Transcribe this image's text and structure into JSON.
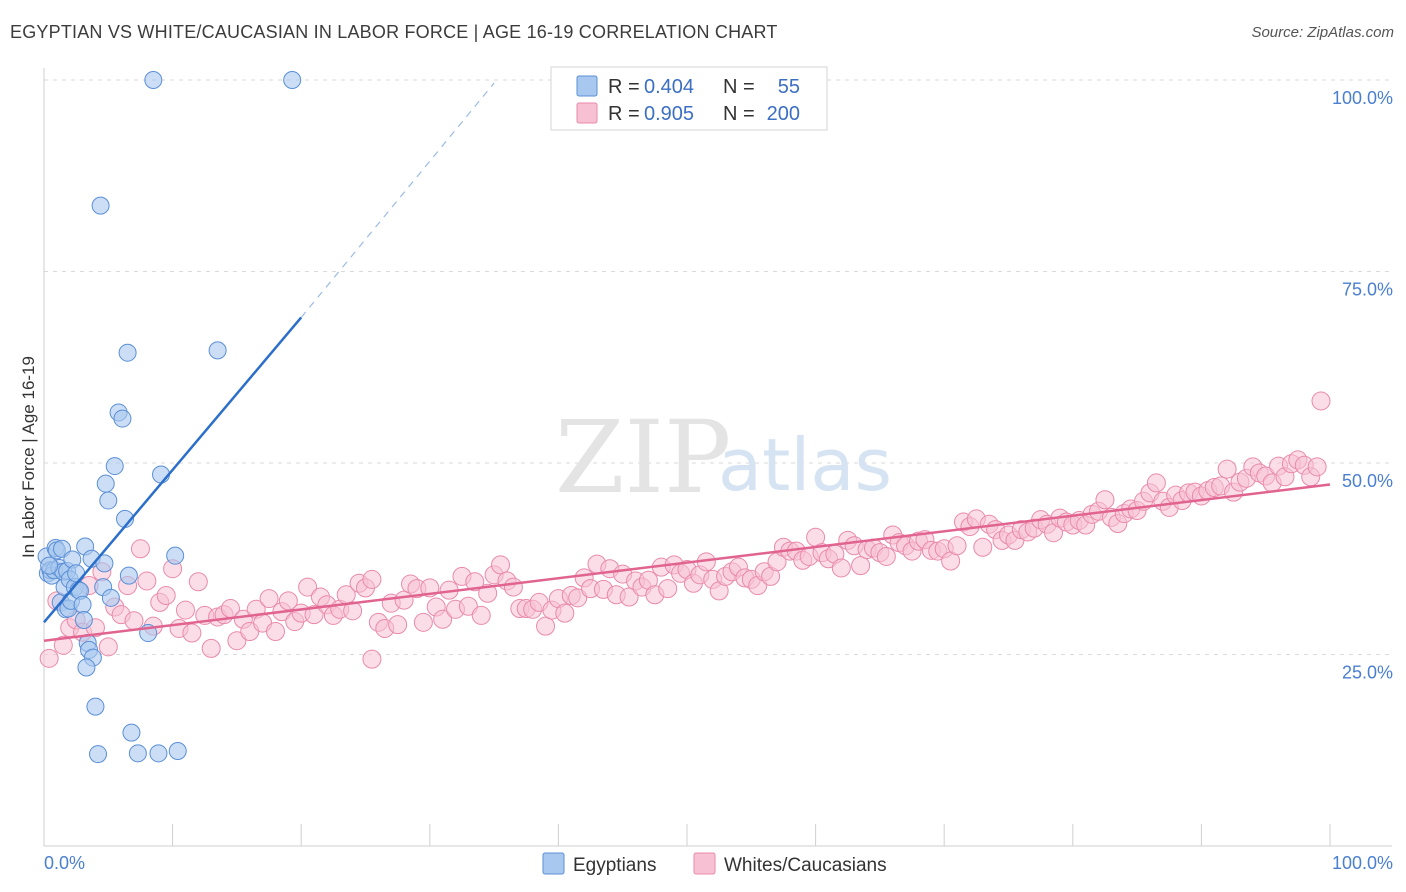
{
  "title": "EGYPTIAN VS WHITE/CAUCASIAN IN LABOR FORCE | AGE 16-19 CORRELATION CHART",
  "source": "Source: ZipAtlas.com",
  "watermark": {
    "zip": "ZIP",
    "atlas": "atlas"
  },
  "colors": {
    "egyptian_fill": "#a9c8ef",
    "egyptian_stroke": "#5b8fd6",
    "egyptian_line": "#2c6fcb",
    "white_fill": "#f7c1d3",
    "white_stroke": "#e98aab",
    "white_line": "#e0648f",
    "grid": "#d9d9d9",
    "tick_text": "#4a7fd0"
  },
  "stats": {
    "r_label": "R =",
    "n_label": "N =",
    "rows": [
      {
        "series": "Egyptians",
        "r": "0.404",
        "n": "55"
      },
      {
        "series": "Whites/Caucasians",
        "r": "0.905",
        "n": "200"
      }
    ]
  },
  "chart_data": {
    "type": "scatter",
    "ylabel": "In Labor Force | Age 16-19",
    "xlim": [
      0,
      100
    ],
    "ylim": [
      0,
      103
    ],
    "x_tick_labels": {
      "left": "0.0%",
      "right": "100.0%"
    },
    "y_ticks": [
      {
        "value": 25,
        "label": "25.0%"
      },
      {
        "value": 50,
        "label": "50.0%"
      },
      {
        "value": 75,
        "label": "75.0%"
      },
      {
        "value": 100,
        "label": "100.0%"
      }
    ],
    "grid": true,
    "legend_position": "bottom-center",
    "series": [
      {
        "name": "Egyptians",
        "points": [
          [
            0.2,
            37.8
          ],
          [
            0.3,
            35.6
          ],
          [
            0.5,
            36.0
          ],
          [
            0.6,
            35.3
          ],
          [
            0.8,
            36.0
          ],
          [
            0.9,
            38.9
          ],
          [
            1.0,
            38.6
          ],
          [
            1.2,
            36.3
          ],
          [
            1.3,
            31.8
          ],
          [
            1.4,
            38.8
          ],
          [
            1.5,
            35.8
          ],
          [
            1.6,
            33.8
          ],
          [
            1.7,
            30.9
          ],
          [
            1.8,
            35.9
          ],
          [
            1.9,
            31.0
          ],
          [
            2.0,
            34.8
          ],
          [
            2.1,
            32.0
          ],
          [
            2.2,
            37.4
          ],
          [
            2.4,
            33.8
          ],
          [
            2.5,
            35.6
          ],
          [
            2.7,
            33.4
          ],
          [
            2.8,
            33.3
          ],
          [
            3.0,
            31.5
          ],
          [
            3.1,
            29.5
          ],
          [
            3.2,
            39.1
          ],
          [
            3.4,
            26.5
          ],
          [
            3.5,
            25.6
          ],
          [
            3.7,
            37.5
          ],
          [
            3.8,
            24.6
          ],
          [
            4.0,
            18.2
          ],
          [
            4.2,
            12.0
          ],
          [
            4.4,
            83.6
          ],
          [
            4.6,
            33.8
          ],
          [
            4.7,
            36.9
          ],
          [
            4.8,
            47.3
          ],
          [
            5.0,
            45.1
          ],
          [
            5.2,
            32.4
          ],
          [
            5.5,
            49.6
          ],
          [
            5.8,
            56.6
          ],
          [
            6.1,
            55.8
          ],
          [
            6.3,
            42.7
          ],
          [
            6.5,
            64.4
          ],
          [
            6.6,
            35.3
          ],
          [
            6.8,
            14.8
          ],
          [
            7.3,
            12.1
          ],
          [
            8.1,
            27.8
          ],
          [
            8.5,
            100.0
          ],
          [
            8.9,
            12.1
          ],
          [
            9.1,
            48.5
          ],
          [
            10.2,
            37.9
          ],
          [
            10.4,
            12.4
          ],
          [
            13.5,
            64.7
          ],
          [
            19.3,
            100.0
          ],
          [
            0.4,
            36.6
          ],
          [
            3.3,
            23.3
          ]
        ]
      },
      {
        "name": "Whites/Caucasians",
        "points": [
          [
            0.4,
            24.5
          ],
          [
            1.0,
            32.0
          ],
          [
            1.5,
            26.2
          ],
          [
            2.0,
            28.5
          ],
          [
            2.5,
            29.5
          ],
          [
            3.0,
            27.9
          ],
          [
            3.5,
            34.0
          ],
          [
            4.0,
            28.5
          ],
          [
            4.5,
            35.8
          ],
          [
            5.0,
            26.0
          ],
          [
            5.5,
            31.2
          ],
          [
            6.0,
            30.2
          ],
          [
            6.5,
            34.0
          ],
          [
            7.0,
            29.4
          ],
          [
            7.5,
            38.8
          ],
          [
            8.0,
            34.6
          ],
          [
            8.5,
            28.7
          ],
          [
            9.0,
            31.8
          ],
          [
            9.5,
            32.7
          ],
          [
            10.0,
            36.2
          ],
          [
            10.5,
            28.4
          ],
          [
            11.0,
            30.8
          ],
          [
            11.5,
            27.8
          ],
          [
            12.0,
            34.5
          ],
          [
            12.5,
            30.1
          ],
          [
            13.0,
            25.8
          ],
          [
            13.5,
            29.9
          ],
          [
            14.0,
            30.2
          ],
          [
            14.5,
            31.0
          ],
          [
            15.0,
            26.8
          ],
          [
            15.5,
            29.6
          ],
          [
            16.0,
            28.0
          ],
          [
            16.5,
            30.9
          ],
          [
            17.0,
            29.1
          ],
          [
            17.5,
            32.3
          ],
          [
            18.0,
            28.0
          ],
          [
            18.5,
            30.6
          ],
          [
            19.0,
            32.0
          ],
          [
            19.5,
            29.3
          ],
          [
            20.0,
            30.4
          ],
          [
            20.5,
            33.8
          ],
          [
            21.0,
            30.2
          ],
          [
            21.5,
            32.5
          ],
          [
            22.0,
            31.5
          ],
          [
            22.5,
            30.1
          ],
          [
            23.0,
            30.9
          ],
          [
            23.5,
            32.8
          ],
          [
            24.0,
            30.7
          ],
          [
            24.5,
            34.3
          ],
          [
            25.0,
            33.7
          ],
          [
            25.5,
            34.8
          ],
          [
            26.0,
            29.2
          ],
          [
            26.5,
            28.4
          ],
          [
            27.0,
            31.7
          ],
          [
            27.5,
            28.9
          ],
          [
            28.0,
            32.1
          ],
          [
            28.5,
            34.2
          ],
          [
            29.0,
            33.6
          ],
          [
            29.5,
            29.2
          ],
          [
            30.0,
            33.7
          ],
          [
            30.5,
            31.2
          ],
          [
            31.0,
            29.6
          ],
          [
            31.5,
            33.4
          ],
          [
            32.0,
            30.9
          ],
          [
            32.5,
            35.2
          ],
          [
            33.0,
            31.3
          ],
          [
            33.5,
            34.5
          ],
          [
            34.0,
            30.1
          ],
          [
            34.5,
            33.0
          ],
          [
            35.0,
            35.4
          ],
          [
            35.5,
            36.7
          ],
          [
            36.0,
            34.6
          ],
          [
            36.5,
            33.8
          ],
          [
            37.0,
            31.0
          ],
          [
            37.5,
            31.0
          ],
          [
            38.0,
            30.9
          ],
          [
            38.5,
            31.8
          ],
          [
            39.0,
            28.7
          ],
          [
            39.5,
            30.8
          ],
          [
            40.0,
            32.3
          ],
          [
            40.5,
            30.4
          ],
          [
            41.0,
            32.7
          ],
          [
            41.5,
            32.4
          ],
          [
            42.0,
            35.0
          ],
          [
            42.5,
            33.6
          ],
          [
            43.0,
            36.8
          ],
          [
            43.5,
            33.5
          ],
          [
            44.0,
            36.2
          ],
          [
            44.5,
            32.8
          ],
          [
            45.0,
            35.5
          ],
          [
            45.5,
            32.5
          ],
          [
            46.0,
            34.6
          ],
          [
            46.5,
            33.8
          ],
          [
            47.0,
            34.7
          ],
          [
            47.5,
            32.8
          ],
          [
            48.0,
            36.4
          ],
          [
            48.5,
            33.6
          ],
          [
            49.0,
            36.7
          ],
          [
            49.5,
            35.6
          ],
          [
            50.0,
            36.1
          ],
          [
            50.5,
            34.3
          ],
          [
            51.0,
            35.4
          ],
          [
            51.5,
            37.1
          ],
          [
            52.0,
            34.8
          ],
          [
            52.5,
            33.3
          ],
          [
            53.0,
            35.2
          ],
          [
            53.5,
            35.8
          ],
          [
            54.0,
            36.4
          ],
          [
            54.5,
            35.0
          ],
          [
            55.0,
            34.8
          ],
          [
            55.5,
            34.0
          ],
          [
            56.0,
            35.8
          ],
          [
            56.5,
            35.2
          ],
          [
            57.0,
            37.1
          ],
          [
            57.5,
            39.0
          ],
          [
            58.0,
            38.5
          ],
          [
            58.5,
            38.5
          ],
          [
            59.0,
            37.3
          ],
          [
            59.5,
            37.8
          ],
          [
            60.0,
            40.3
          ],
          [
            60.5,
            38.3
          ],
          [
            61.0,
            37.5
          ],
          [
            61.5,
            38.1
          ],
          [
            62.0,
            36.3
          ],
          [
            62.5,
            39.9
          ],
          [
            63.0,
            39.2
          ],
          [
            63.5,
            36.6
          ],
          [
            64.0,
            38.7
          ],
          [
            64.5,
            38.9
          ],
          [
            65.0,
            38.3
          ],
          [
            65.5,
            37.8
          ],
          [
            66.0,
            40.6
          ],
          [
            66.5,
            39.6
          ],
          [
            67.0,
            39.2
          ],
          [
            67.5,
            38.5
          ],
          [
            68.0,
            39.8
          ],
          [
            68.5,
            40.0
          ],
          [
            69.0,
            38.6
          ],
          [
            69.5,
            38.5
          ],
          [
            70.0,
            38.8
          ],
          [
            70.5,
            37.2
          ],
          [
            71.0,
            39.2
          ],
          [
            71.5,
            42.3
          ],
          [
            72.0,
            41.7
          ],
          [
            72.5,
            42.7
          ],
          [
            73.0,
            39.0
          ],
          [
            73.5,
            42.0
          ],
          [
            74.0,
            41.3
          ],
          [
            74.5,
            39.9
          ],
          [
            75.0,
            40.6
          ],
          [
            75.5,
            39.9
          ],
          [
            76.0,
            41.3
          ],
          [
            76.5,
            41.0
          ],
          [
            77.0,
            41.5
          ],
          [
            77.5,
            42.6
          ],
          [
            78.0,
            42.0
          ],
          [
            78.5,
            40.9
          ],
          [
            79.0,
            42.8
          ],
          [
            79.5,
            42.3
          ],
          [
            80.0,
            41.9
          ],
          [
            80.5,
            42.5
          ],
          [
            81.0,
            41.9
          ],
          [
            81.5,
            43.3
          ],
          [
            82.0,
            43.7
          ],
          [
            82.5,
            45.2
          ],
          [
            83.0,
            42.9
          ],
          [
            83.5,
            42.1
          ],
          [
            84.0,
            43.4
          ],
          [
            84.5,
            44.0
          ],
          [
            85.0,
            43.8
          ],
          [
            85.5,
            45.0
          ],
          [
            86.0,
            46.1
          ],
          [
            86.5,
            47.4
          ],
          [
            87.0,
            45.0
          ],
          [
            87.5,
            44.2
          ],
          [
            88.0,
            45.8
          ],
          [
            88.5,
            45.1
          ],
          [
            89.0,
            46.1
          ],
          [
            89.5,
            46.2
          ],
          [
            90.0,
            45.7
          ],
          [
            90.5,
            46.4
          ],
          [
            91.0,
            46.8
          ],
          [
            91.5,
            47.0
          ],
          [
            92.0,
            49.2
          ],
          [
            92.5,
            46.2
          ],
          [
            93.0,
            47.5
          ],
          [
            93.5,
            48.0
          ],
          [
            94.0,
            49.5
          ],
          [
            94.5,
            48.7
          ],
          [
            95.0,
            48.3
          ],
          [
            95.5,
            47.4
          ],
          [
            96.0,
            49.6
          ],
          [
            96.5,
            48.2
          ],
          [
            97.0,
            49.9
          ],
          [
            97.5,
            50.4
          ],
          [
            98.0,
            49.7
          ],
          [
            98.5,
            48.2
          ],
          [
            99.0,
            49.5
          ],
          [
            99.3,
            58.1
          ],
          [
            25.5,
            24.4
          ]
        ],
        "trend": [
          [
            0,
            26.8
          ],
          [
            100,
            47.2
          ]
        ]
      }
    ],
    "egyptian_trend": {
      "solid": [
        [
          0,
          29.2
        ],
        [
          20,
          69.0
        ]
      ],
      "dashed": [
        [
          20,
          69.0
        ],
        [
          35,
          99.6
        ]
      ]
    }
  }
}
